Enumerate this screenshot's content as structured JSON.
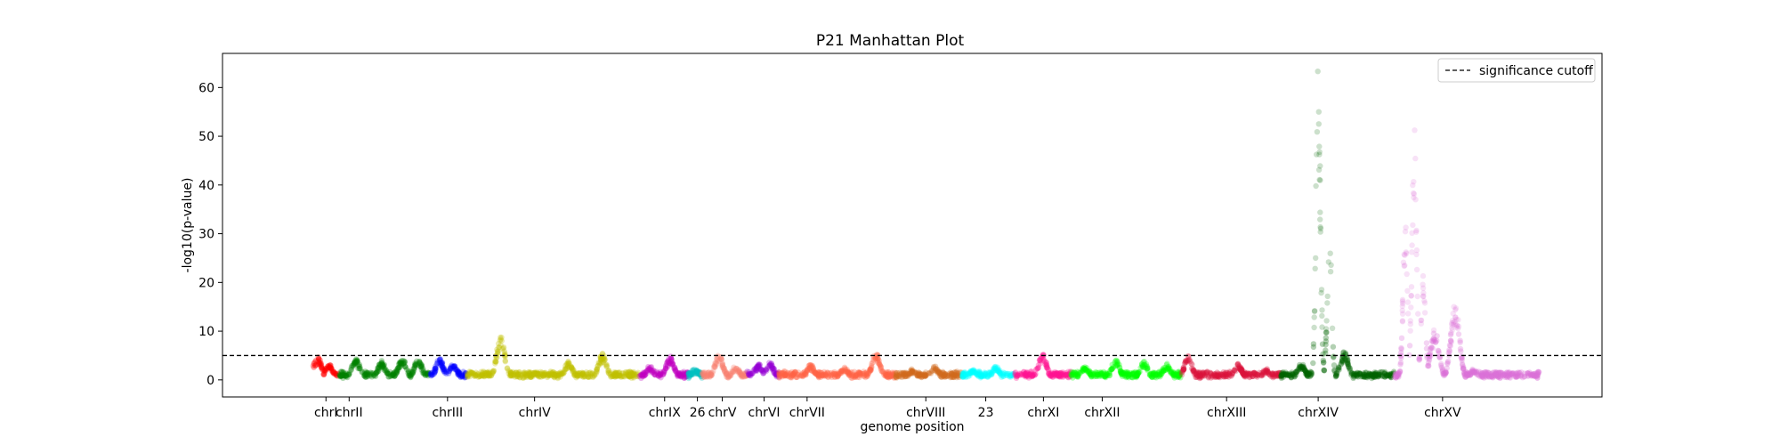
{
  "chart_data": {
    "type": "scatter",
    "title": "P21 Manhattan Plot",
    "xlabel": "genome position",
    "ylabel": "-log10(p-value)",
    "ylim": [
      -3.5,
      67
    ],
    "yticks": [
      0,
      10,
      20,
      30,
      40,
      50,
      60
    ],
    "threshold": {
      "value": 5,
      "label": "significance cutoff"
    },
    "legend_position": "top-right",
    "grid": false,
    "chromosomes": [
      {
        "name": "chrI",
        "start": 0,
        "end": 230,
        "label_pos": 115,
        "color": "#ff0000",
        "peaks": [
          [
            40,
            4.5
          ],
          [
            140,
            3.0
          ]
        ]
      },
      {
        "name": "chrII",
        "start": 230,
        "end": 1040,
        "label_pos": 320,
        "color": "#008000",
        "peaks": [
          [
            150,
            4.0
          ],
          [
            380,
            3.5
          ],
          [
            560,
            4.2
          ],
          [
            700,
            4.0
          ]
        ]
      },
      {
        "name": "chrIII",
        "start": 1040,
        "end": 1360,
        "label_pos": 1190,
        "color": "#0000ff",
        "peaks": [
          [
            80,
            4.0
          ],
          [
            200,
            3.0
          ]
        ]
      },
      {
        "name": "chrIV",
        "start": 1360,
        "end": 2880,
        "label_pos": 1960,
        "color": "#bfbf00",
        "peaks": [
          [
            300,
            8.5
          ],
          [
            900,
            3.5
          ],
          [
            1200,
            5.0
          ]
        ]
      },
      {
        "name": "chrIX",
        "start": 2880,
        "end": 3320,
        "label_pos": 3110,
        "color": "#bf00bf",
        "peaks": [
          [
            100,
            2.5
          ],
          [
            280,
            4.5
          ]
        ]
      },
      {
        "name": "26",
        "start": 3320,
        "end": 3440,
        "label_pos": 3400,
        "color": "#00bfbf",
        "peaks": [
          [
            60,
            2.0
          ]
        ]
      },
      {
        "name": "chrV",
        "start": 3440,
        "end": 3840,
        "label_pos": 3620,
        "color": "#fa8072",
        "peaks": [
          [
            150,
            5.0
          ],
          [
            300,
            2.5
          ]
        ]
      },
      {
        "name": "chrVI",
        "start": 3840,
        "end": 4120,
        "label_pos": 3990,
        "color": "#9400d3",
        "peaks": [
          [
            100,
            3.0
          ],
          [
            200,
            3.5
          ]
        ]
      },
      {
        "name": "chrVII",
        "start": 4120,
        "end": 5150,
        "label_pos": 4370,
        "color": "#ff6347",
        "peaks": [
          [
            280,
            2.8
          ],
          [
            580,
            2.5
          ],
          [
            860,
            5.5
          ]
        ]
      },
      {
        "name": "chrVIII",
        "start": 5150,
        "end": 5740,
        "label_pos": 5420,
        "color": "#d2691e",
        "peaks": [
          [
            150,
            2.0
          ],
          [
            350,
            2.5
          ]
        ]
      },
      {
        "name": "23",
        "start": 5740,
        "end": 6200,
        "label_pos": 5950,
        "color": "#00ffff",
        "peaks": [
          [
            100,
            2.0
          ],
          [
            300,
            2.5
          ]
        ]
      },
      {
        "name": "chrXI",
        "start": 6200,
        "end": 6700,
        "label_pos": 6460,
        "color": "#ff1493",
        "peaks": [
          [
            250,
            5.0
          ]
        ]
      },
      {
        "name": "chrXII",
        "start": 6700,
        "end": 7680,
        "label_pos": 6980,
        "color": "#00ff00",
        "peaks": [
          [
            130,
            2.5
          ],
          [
            400,
            4.0
          ],
          [
            650,
            3.5
          ],
          [
            850,
            3.0
          ]
        ]
      },
      {
        "name": "chrXIII",
        "start": 7680,
        "end": 8560,
        "label_pos": 8080,
        "color": "#dc143c",
        "peaks": [
          [
            60,
            4.5
          ],
          [
            500,
            3.0
          ],
          [
            750,
            2.0
          ]
        ]
      },
      {
        "name": "chrXIV",
        "start": 8560,
        "end": 9560,
        "label_pos": 8890,
        "color": "#006400",
        "peaks": [
          [
            180,
            3.0
          ],
          [
            330,
            62
          ],
          [
            430,
            30
          ],
          [
            560,
            5.5
          ]
        ]
      },
      {
        "name": "chrXV",
        "start": 9560,
        "end": 10850,
        "label_pos": 9990,
        "color": "#da70d6",
        "peaks": [
          [
            100,
            32
          ],
          [
            180,
            50
          ],
          [
            260,
            22
          ],
          [
            360,
            10
          ],
          [
            540,
            15
          ],
          [
            700,
            2.0
          ]
        ]
      }
    ],
    "xlim": [
      -800,
      11400
    ]
  }
}
